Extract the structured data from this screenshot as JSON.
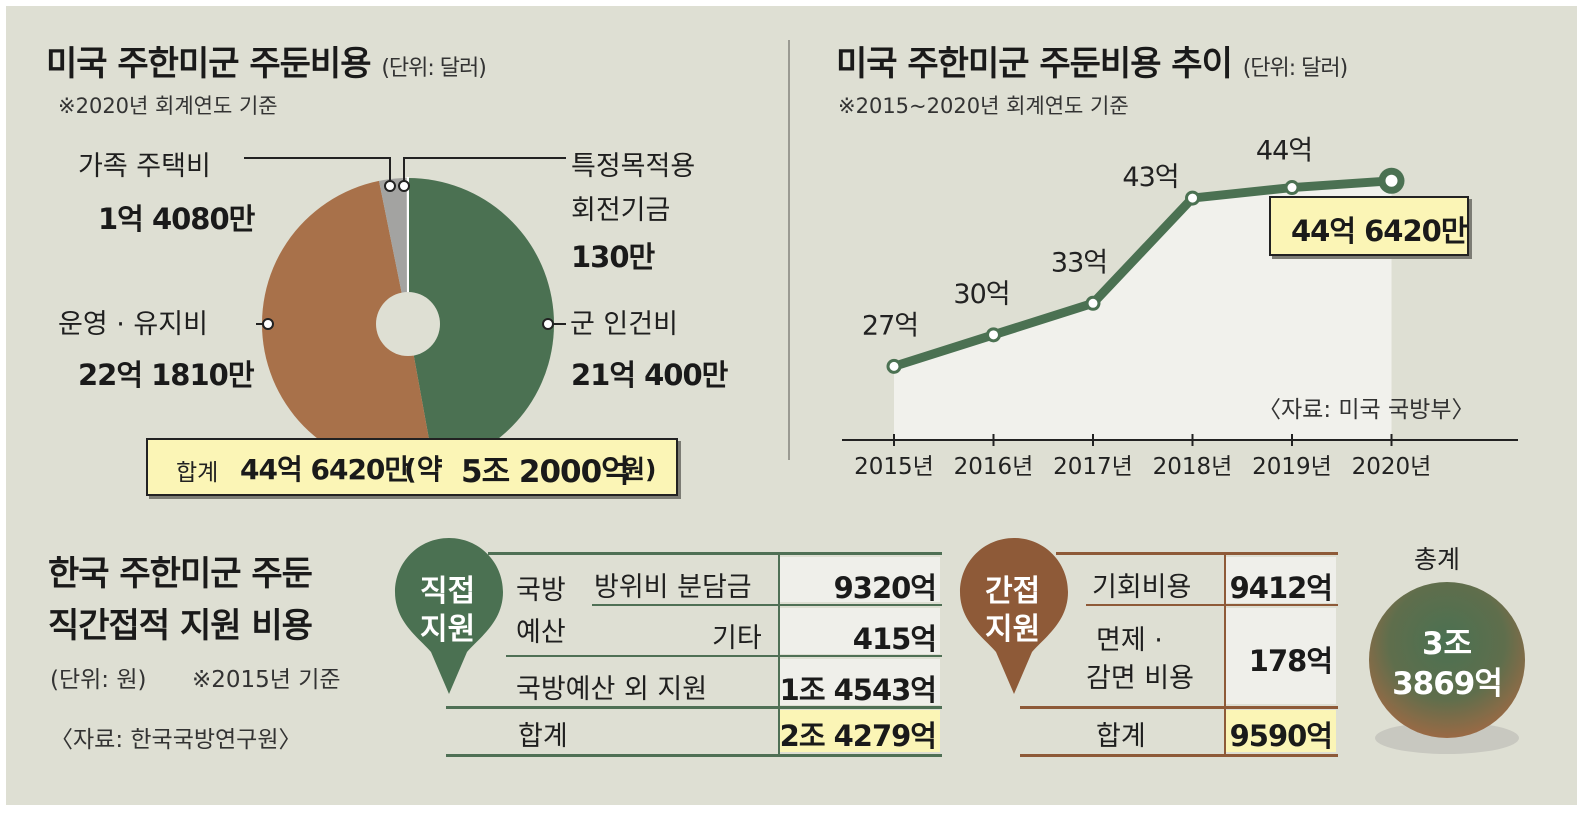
{
  "colors": {
    "green": "#4b7152",
    "brown": "#a8714a",
    "gray": "#a3a3a1",
    "panel": "#dedfd3",
    "highlight": "#fbf5b6"
  },
  "pie": {
    "title": "미국 주한미군 주둔비용",
    "unit": "(단위: 달러)",
    "note": "※2020년 회계연도 기준",
    "total_label": "합계",
    "total_main": "44억 6420만",
    "total_paren_open": "(약",
    "total_won": "5조 2000억",
    "total_won_suffix": "원)"
  },
  "line": {
    "title": "미국 주한미군 주둔비용 추이",
    "unit": "(단위: 달러)",
    "note": "※2015~2020년 회계연도 기준",
    "source": "〈자료: 미국 국방부〉",
    "latest_value": "44억 6420만"
  },
  "support": {
    "title_line1": "한국 주한미군 주둔",
    "title_line2": "직간접적 지원 비용",
    "unit": "(단위: 원)",
    "note": "※2015년 기준",
    "source": "〈자료: 한국국방연구원〉",
    "direct": {
      "badge": "직접\n지원",
      "badge_line1": "직접",
      "badge_line2": "지원",
      "group_label_line1": "국방",
      "group_label_line2": "예산",
      "rows": [
        {
          "label": "방위비 분담금",
          "value": "9320억"
        },
        {
          "label": "기타",
          "value": "415억"
        },
        {
          "label": "국방예산 외 지원",
          "value": "1조 4543억"
        }
      ],
      "total_label": "합계",
      "total_value": "2조 4279억"
    },
    "indirect": {
      "badge_line1": "간접",
      "badge_line2": "지원",
      "rows": [
        {
          "label": "기회비용",
          "value": "9412억"
        },
        {
          "label_line1": "면제 ·",
          "label_line2": "감면 비용",
          "value": "178억"
        }
      ],
      "total_label": "합계",
      "total_value": "9590억"
    },
    "grand_total_label": "총계",
    "grand_total_line1": "3조",
    "grand_total_line2": "3869억"
  },
  "chart_data": [
    {
      "type": "pie",
      "title": "미국 주한미군 주둔비용",
      "unit": "(단위: 달러)",
      "slices": [
        {
          "name": "군 인건비",
          "label": "21억 400만",
          "value": 2104000000,
          "color": "#4b7152"
        },
        {
          "name": "운영 · 유지비",
          "label": "22억 1810만",
          "value": 2218100000,
          "color": "#a8714a"
        },
        {
          "name": "가족 주택비",
          "label": "1억 4080만",
          "value": 140800000,
          "color": "#a3a3a1"
        },
        {
          "name": "특정목적용\n회전기금",
          "name_line1": "특정목적용",
          "name_line2": "회전기금",
          "label": "130만",
          "value": 1300000,
          "color": "#dedfd3"
        }
      ]
    },
    {
      "type": "line",
      "title": "미국 주한미군 주둔비용 추이",
      "x": [
        "2015년",
        "2016년",
        "2017년",
        "2018년",
        "2019년",
        "2020년"
      ],
      "y": [
        27,
        30,
        33,
        43,
        44,
        44.642
      ],
      "point_labels": [
        "27억",
        "30억",
        "33억",
        "43억",
        "44억",
        ""
      ],
      "ylabel": "",
      "ylim": [
        20,
        47
      ]
    }
  ]
}
